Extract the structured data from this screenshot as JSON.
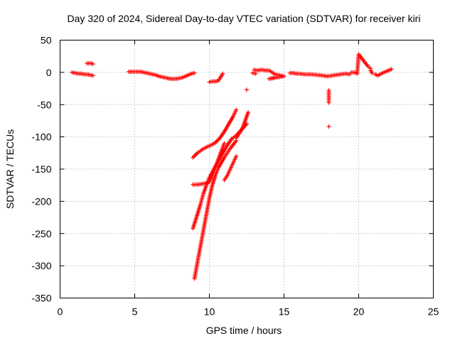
{
  "chart_data": {
    "type": "scatter",
    "title": "Day 320 of 2024, Sidereal Day-to-day VTEC variation (SDTVAR) for receiver kiri",
    "xlabel": "GPS time / hours",
    "ylabel": "SDTVAR / TECUs",
    "xlim": [
      0,
      25
    ],
    "ylim": [
      -350,
      50
    ],
    "xticks": [
      0,
      5,
      10,
      15,
      20,
      25
    ],
    "yticks": [
      -350,
      -300,
      -250,
      -200,
      -150,
      -100,
      -50,
      0,
      50
    ],
    "grid": true,
    "marker": "+",
    "color": "#ff0000",
    "series": [
      {
        "points": [
          [
            0.8,
            0
          ],
          [
            1.0,
            -1
          ],
          [
            1.2,
            -2
          ],
          [
            1.4,
            -2
          ],
          [
            1.6,
            -3
          ],
          [
            1.8,
            -3
          ],
          [
            2.0,
            -4
          ],
          [
            2.2,
            -5
          ]
        ]
      },
      {
        "points": [
          [
            1.8,
            14
          ],
          [
            1.9,
            14
          ],
          [
            2.0,
            14
          ],
          [
            2.1,
            14
          ],
          [
            2.2,
            13
          ]
        ]
      },
      {
        "points": [
          [
            4.6,
            1
          ],
          [
            4.8,
            1
          ],
          [
            5.0,
            1
          ],
          [
            5.2,
            1
          ],
          [
            5.4,
            1
          ],
          [
            5.6,
            0
          ],
          [
            5.8,
            -1
          ],
          [
            6.0,
            -2
          ],
          [
            6.2,
            -3
          ],
          [
            6.4,
            -4
          ],
          [
            6.6,
            -6
          ],
          [
            6.8,
            -7
          ],
          [
            7.0,
            -8
          ],
          [
            7.2,
            -9
          ],
          [
            7.4,
            -10
          ],
          [
            7.6,
            -10
          ],
          [
            7.8,
            -10
          ],
          [
            8.0,
            -9
          ],
          [
            8.2,
            -8
          ],
          [
            8.4,
            -6
          ],
          [
            8.6,
            -4
          ],
          [
            8.8,
            -2
          ],
          [
            9.0,
            -1
          ]
        ]
      },
      {
        "points": [
          [
            10.0,
            -15
          ],
          [
            10.2,
            -14
          ],
          [
            10.4,
            -14
          ],
          [
            10.6,
            -13
          ],
          [
            10.9,
            -2
          ],
          [
            12.5,
            -27
          ]
        ]
      },
      {
        "points": [
          [
            8.9,
            -132
          ],
          [
            9.2,
            -125
          ],
          [
            9.5,
            -120
          ],
          [
            9.8,
            -116
          ],
          [
            10.1,
            -113
          ],
          [
            10.4,
            -109
          ],
          [
            10.7,
            -102
          ],
          [
            11.0,
            -92
          ],
          [
            11.3,
            -80
          ],
          [
            11.6,
            -68
          ],
          [
            11.8,
            -58
          ]
        ]
      },
      {
        "points": [
          [
            8.9,
            -174
          ],
          [
            9.2,
            -174
          ],
          [
            9.5,
            -173
          ],
          [
            9.8,
            -172
          ],
          [
            10.0,
            -170
          ],
          [
            10.2,
            -160
          ],
          [
            10.4,
            -148
          ],
          [
            10.6,
            -135
          ],
          [
            10.8,
            -122
          ],
          [
            11.0,
            -110
          ]
        ]
      },
      {
        "points": [
          [
            8.9,
            -242
          ],
          [
            9.2,
            -220
          ],
          [
            9.4,
            -205
          ],
          [
            9.6,
            -188
          ],
          [
            9.8,
            -175
          ],
          [
            10.0,
            -163
          ],
          [
            10.3,
            -150
          ],
          [
            10.6,
            -137
          ],
          [
            10.9,
            -125
          ],
          [
            11.2,
            -113
          ],
          [
            11.5,
            -103
          ],
          [
            11.8,
            -98
          ],
          [
            12.1,
            -90
          ],
          [
            12.5,
            -80
          ]
        ]
      },
      {
        "points": [
          [
            9.0,
            -320
          ],
          [
            9.2,
            -295
          ],
          [
            9.4,
            -270
          ],
          [
            9.6,
            -245
          ],
          [
            9.8,
            -220
          ],
          [
            10.0,
            -195
          ],
          [
            10.2,
            -175
          ],
          [
            10.4,
            -160
          ],
          [
            10.6,
            -148
          ],
          [
            10.8,
            -140
          ],
          [
            11.0,
            -132
          ],
          [
            11.2,
            -125
          ],
          [
            11.4,
            -118
          ],
          [
            11.6,
            -112
          ],
          [
            11.8,
            -106
          ]
        ]
      },
      {
        "points": [
          [
            11.0,
            -167
          ],
          [
            11.2,
            -160
          ],
          [
            11.4,
            -150
          ],
          [
            11.6,
            -140
          ],
          [
            11.8,
            -130
          ]
        ]
      },
      {
        "points": [
          [
            11.8,
            -102
          ],
          [
            12.0,
            -95
          ],
          [
            12.2,
            -88
          ],
          [
            12.4,
            -75
          ],
          [
            12.6,
            -62
          ]
        ]
      },
      {
        "points": [
          [
            13.0,
            4
          ],
          [
            13.2,
            3
          ],
          [
            13.5,
            4
          ],
          [
            13.8,
            3
          ],
          [
            14.0,
            3
          ],
          [
            14.2,
            0
          ],
          [
            14.4,
            -3
          ],
          [
            14.6,
            -4
          ],
          [
            14.8,
            -5
          ],
          [
            15.0,
            -6
          ],
          [
            14.0,
            -10
          ],
          [
            14.4,
            -8
          ]
        ]
      },
      {
        "points": [
          [
            12.9,
            -1
          ],
          [
            13.1,
            -2
          ]
        ]
      },
      {
        "points": [
          [
            15.4,
            -1
          ],
          [
            15.6,
            -1
          ],
          [
            15.8,
            -2
          ],
          [
            16.0,
            -2
          ],
          [
            16.4,
            -3
          ],
          [
            16.8,
            -3
          ],
          [
            17.2,
            -4
          ],
          [
            17.6,
            -5
          ],
          [
            17.9,
            -6
          ],
          [
            18.2,
            -5
          ],
          [
            18.5,
            -4
          ],
          [
            18.8,
            -3
          ],
          [
            19.1,
            -2
          ],
          [
            19.4,
            -3
          ]
        ]
      },
      {
        "points": [
          [
            18.0,
            -28
          ],
          [
            18.0,
            -42
          ],
          [
            18.0,
            -47
          ],
          [
            18.0,
            -84
          ]
        ]
      },
      {
        "points": [
          [
            19.5,
            0
          ],
          [
            19.7,
            0
          ],
          [
            19.9,
            -2
          ],
          [
            20.0,
            28
          ],
          [
            20.2,
            22
          ],
          [
            20.4,
            16
          ],
          [
            20.6,
            10
          ],
          [
            20.8,
            6
          ],
          [
            20.8,
            3
          ],
          [
            20.9,
            -1
          ]
        ]
      },
      {
        "points": [
          [
            21.1,
            -3
          ],
          [
            21.3,
            -5
          ],
          [
            21.5,
            -2
          ],
          [
            21.7,
            0
          ],
          [
            21.9,
            2
          ],
          [
            22.1,
            4
          ],
          [
            22.2,
            5
          ]
        ]
      }
    ]
  }
}
